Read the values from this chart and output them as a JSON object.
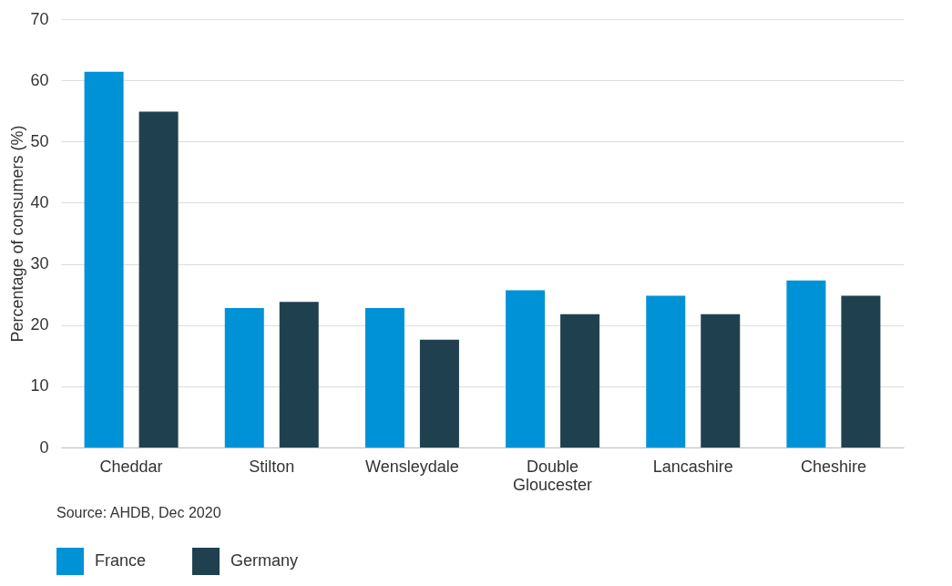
{
  "chart_data": {
    "type": "bar",
    "categories": [
      "Cheddar",
      "Stilton",
      "Wensleydale",
      "Double Gloucester",
      "Lancashire",
      "Cheshire"
    ],
    "series": [
      {
        "name": "France",
        "color": "#0092d6",
        "values": [
          61.4,
          22.8,
          22.8,
          25.7,
          24.8,
          27.3
        ]
      },
      {
        "name": "Germany",
        "color": "#1f414f",
        "values": [
          54.9,
          23.8,
          17.6,
          21.8,
          21.8,
          24.8
        ]
      }
    ],
    "ylabel": "Percentage of consumers (%)",
    "ylim": [
      0,
      70
    ],
    "yticks": [
      0,
      10,
      20,
      30,
      40,
      50,
      60,
      70
    ],
    "grid": "y",
    "legend": "bottom left",
    "annotations": [
      "Source: AHDB, Dec 2020"
    ]
  }
}
